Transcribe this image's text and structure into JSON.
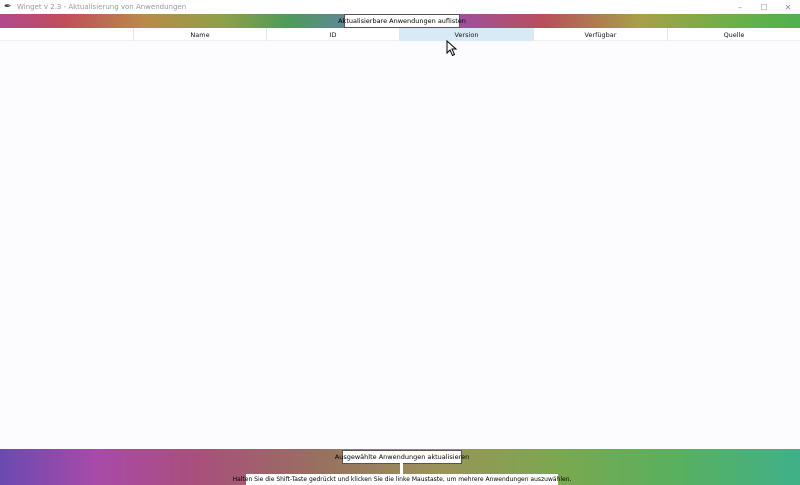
{
  "window": {
    "title": "Winget v 2.3 - Aktualisierung von Anwendungen",
    "icon": "feather-icon"
  },
  "toolbar": {
    "list_button": "Aktualisierbare Anwendungen auflisten"
  },
  "table": {
    "columns": [
      "",
      "Name",
      "ID",
      "Version",
      "Verfügbar",
      "Quelle"
    ],
    "selected_column": "Version",
    "rows": []
  },
  "footer": {
    "update_button": "Ausgewählte Anwendungen aktualisieren",
    "hint": "Halten Sie die Shift-Taste gedrückt und klicken Sie die linke Maustaste, um mehrere Anwendungen auszuwählen."
  },
  "colors": {
    "header_highlight": "#d9eaf7"
  }
}
